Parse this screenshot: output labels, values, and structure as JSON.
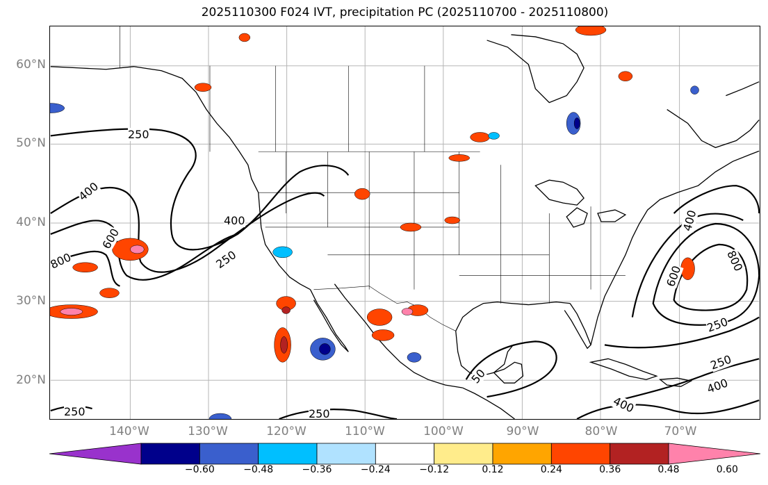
{
  "title": "2025110300 F024 IVT, precipitation PC (2025110700 - 2025110800)",
  "latitude_labels": [
    "60°N",
    "50°N",
    "40°N",
    "30°N",
    "20°N"
  ],
  "longitude_labels": [
    "140°W",
    "130°W",
    "120°W",
    "110°W",
    "100°W",
    "90°W",
    "80°W",
    "70°W"
  ],
  "contour_labels": [
    "250",
    "400",
    "600",
    "800",
    "400",
    "250",
    "250",
    "400",
    "600",
    "800",
    "250",
    "250",
    "400",
    "400",
    "50",
    "250"
  ],
  "colorbar": {
    "colors": [
      "#9932cc",
      "#00008b",
      "#3a5fcd",
      "#00bfff",
      "#b0e2ff",
      "#ffffff",
      "#ffec8b",
      "#ffa500",
      "#ff4500",
      "#b22222",
      "#ff82ab"
    ],
    "tick_labels": [
      "−0.60",
      "−0.48",
      "−0.36",
      "−0.24",
      "−0.12",
      "0.12",
      "0.24",
      "0.36",
      "0.48",
      "0.60"
    ]
  }
}
